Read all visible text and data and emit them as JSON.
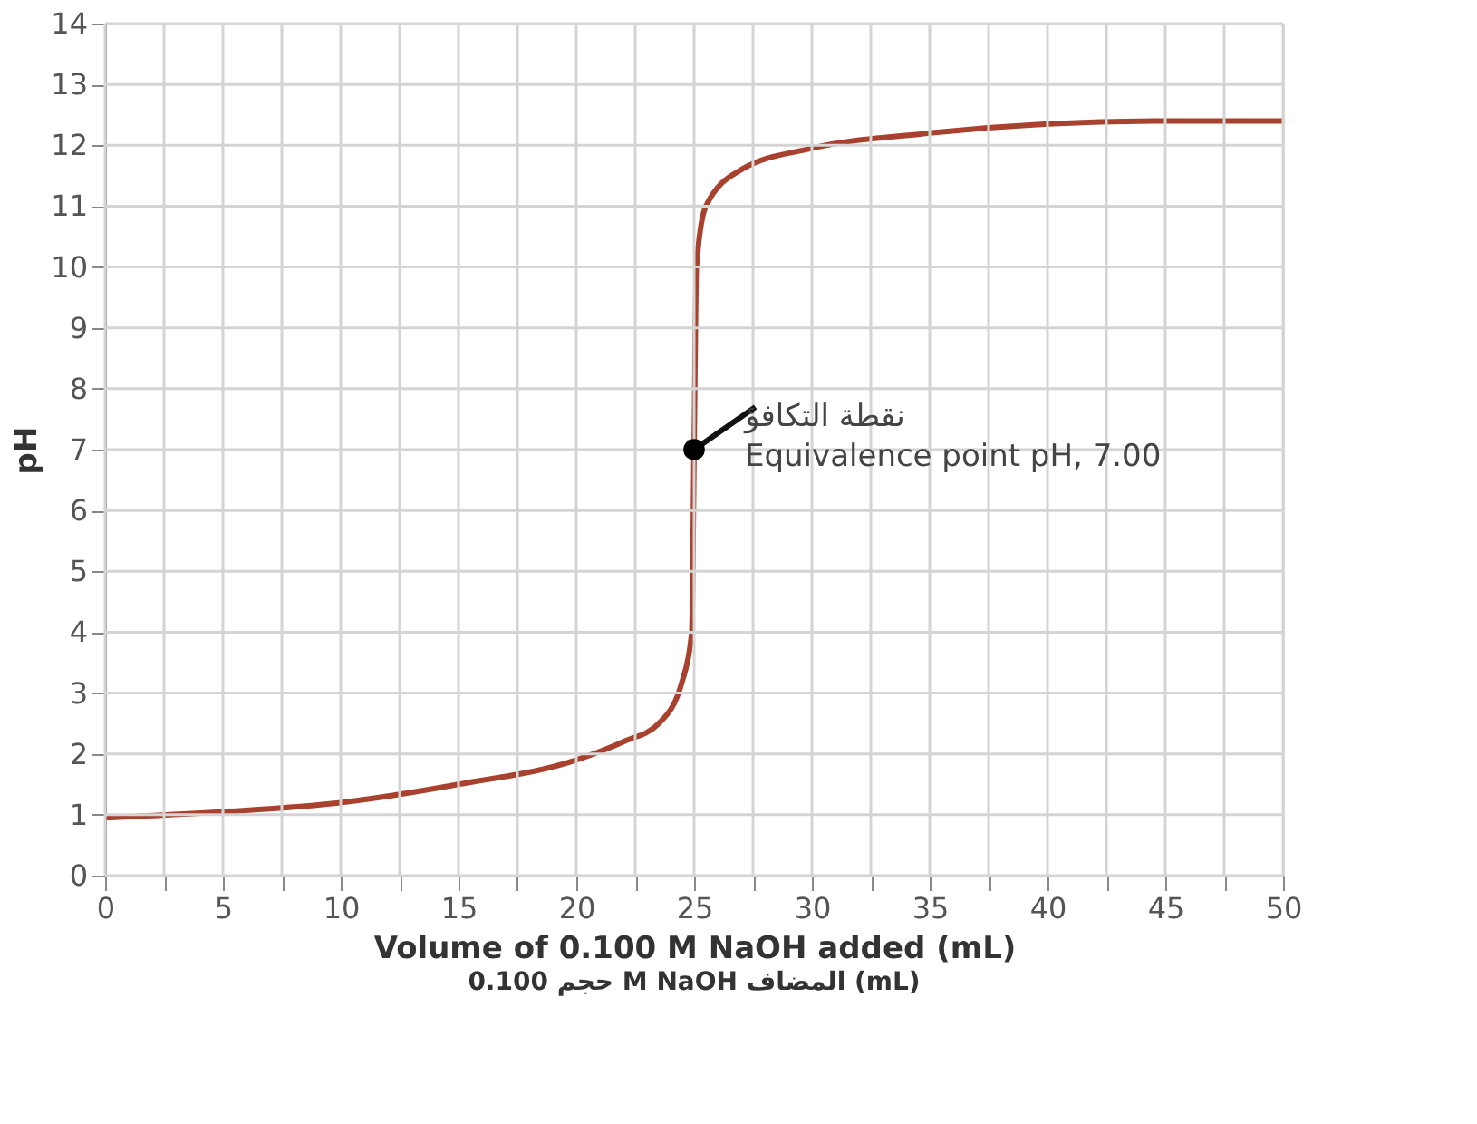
{
  "chart_data": {
    "type": "line",
    "xlabel": "Volume of 0.100 M NaOH added (mL)",
    "ylabel": "pH",
    "x": [
      0,
      5,
      10,
      15,
      20,
      22,
      23.5,
      24.5,
      24.9,
      25,
      25.1,
      25.5,
      27,
      30,
      35,
      40,
      45,
      50
    ],
    "series": [
      {
        "color": "#a8422e",
        "values": [
          0.95,
          1.05,
          1.2,
          1.5,
          1.9,
          2.2,
          2.5,
          3.2,
          4,
          7,
          10,
          11,
          11.6,
          11.95,
          12.2,
          12.35,
          12.4,
          12.4
        ]
      }
    ],
    "xlim": [
      0,
      50
    ],
    "xticks": [
      0,
      {
        "value": 2.5,
        "label": null
      },
      5,
      {
        "value": 7.5,
        "label": null
      },
      10,
      {
        "value": 12.5,
        "label": null
      },
      15,
      {
        "value": 17.5,
        "label": null
      },
      20,
      {
        "value": 22.5,
        "label": null
      },
      25,
      {
        "value": 27.5,
        "label": null
      },
      30,
      {
        "value": 32.5,
        "label": null
      },
      35,
      {
        "value": 37.5,
        "label": null
      },
      40,
      {
        "value": 42.5,
        "label": null
      },
      45,
      {
        "value": 47.5,
        "label": null
      },
      50
    ],
    "ylim": [
      0,
      14
    ],
    "yticks": [
      0,
      1,
      2,
      3,
      4,
      5,
      6,
      7,
      8,
      9,
      10,
      11,
      12,
      13,
      14
    ],
    "grid": true,
    "legend": false,
    "marker": "none",
    "line_style": "solid",
    "annotations": [
      {
        "text": "نقطة التكافؤ\nEquivalence point pH, 7.00",
        "x": 25,
        "y": 7
      },
      "حجم 0.100 M NaOH المضاف (mL)"
    ]
  }
}
